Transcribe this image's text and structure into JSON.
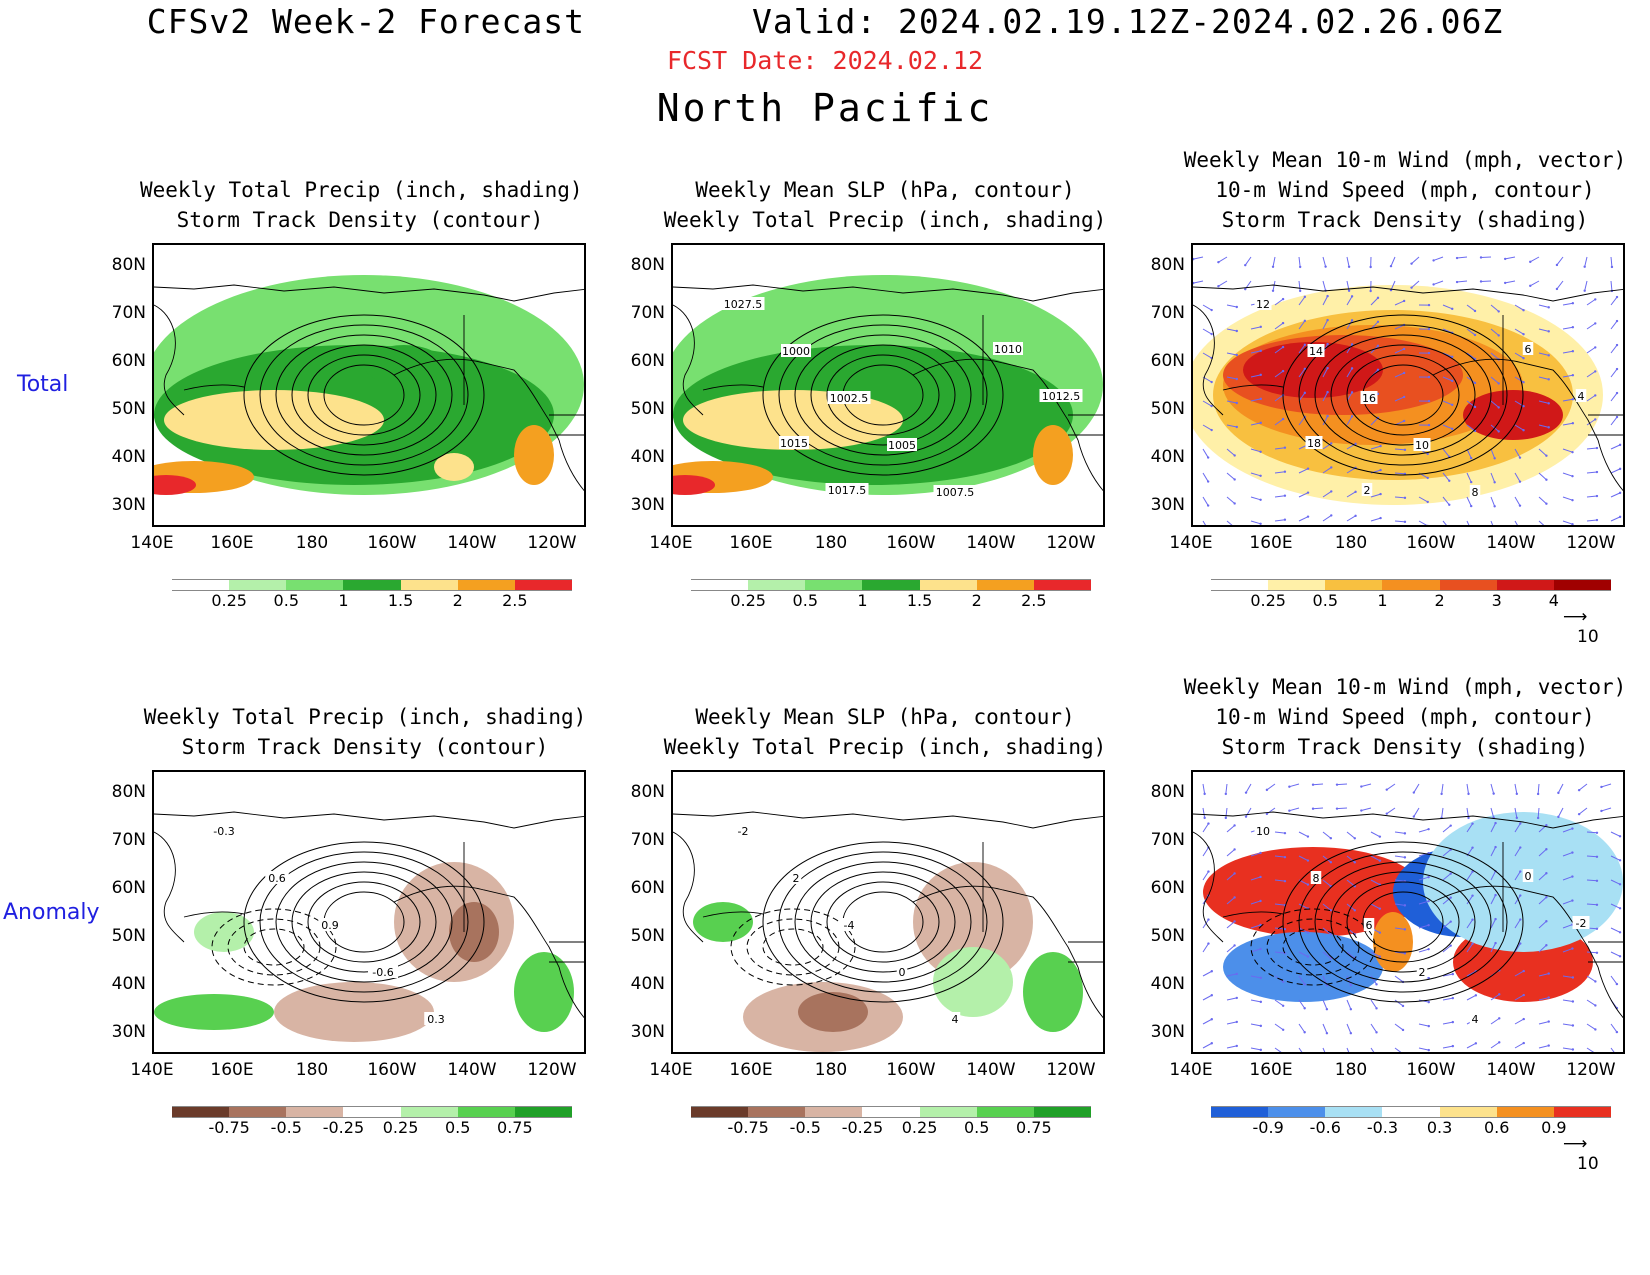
{
  "header": {
    "title_left": "CFSv2 Week-2 Forecast",
    "valid": "Valid: 2024.02.19.12Z-2024.02.26.06Z",
    "fcst_date": "FCST Date: 2024.02.12",
    "region": "North Pacific"
  },
  "row_labels": {
    "total": "Total",
    "anomaly": "Anomaly"
  },
  "axes": {
    "lat_labels": [
      "80N",
      "70N",
      "60N",
      "50N",
      "40N",
      "30N"
    ],
    "lon_labels": [
      "140E",
      "160E",
      "180",
      "160W",
      "140W",
      "120W"
    ]
  },
  "panels": [
    {
      "id": "t1",
      "title_lines": [
        "Weekly Total Precip (inch, shading)",
        "Storm Track Density (contour)"
      ],
      "colorbar": {
        "labels": [
          "0.25",
          "0.5",
          "1",
          "1.5",
          "2",
          "2.5"
        ],
        "colors": [
          "#ffffff",
          "#b4f0aa",
          "#78e070",
          "#2aa830",
          "#fde28c",
          "#f4a020",
          "#e8282b"
        ]
      }
    },
    {
      "id": "t2",
      "title_lines": [
        "Weekly Mean SLP (hPa, contour)",
        "Weekly Total Precip (inch, shading)"
      ],
      "contour_labels": [
        "1027.5",
        "1000",
        "1002.5",
        "1005",
        "1007.5",
        "1010",
        "1012.5",
        "1015",
        "1017.5"
      ],
      "colorbar": {
        "labels": [
          "0.25",
          "0.5",
          "1",
          "1.5",
          "2",
          "2.5"
        ],
        "colors": [
          "#ffffff",
          "#b4f0aa",
          "#78e070",
          "#2aa830",
          "#fde28c",
          "#f4a020",
          "#e8282b"
        ]
      }
    },
    {
      "id": "t3",
      "title_lines": [
        "Weekly Mean 10-m Wind (mph, vector)",
        "10-m Wind Speed (mph, contour)",
        "Storm Track Density (shading)"
      ],
      "contour_labels": [
        "12",
        "14",
        "16",
        "10",
        "8",
        "6",
        "4",
        "18",
        "2"
      ],
      "colorbar": {
        "labels": [
          "0.25",
          "0.5",
          "1",
          "2",
          "3",
          "4"
        ],
        "colors": [
          "#ffffff",
          "#fff0a8",
          "#f8c040",
          "#f49020",
          "#e85020",
          "#d01818",
          "#a00000"
        ]
      },
      "vector_ref": "10"
    },
    {
      "id": "a1",
      "title_lines": [
        "Weekly Total Precip (inch, shading)",
        "Storm Track Density (contour)"
      ],
      "contour_labels": [
        "-0.3",
        "0.6",
        "0.9",
        "-0.6",
        "0.3"
      ],
      "colorbar": {
        "labels": [
          "-0.75",
          "-0.5",
          "-0.25",
          "0.25",
          "0.5",
          "0.75"
        ],
        "colors": [
          "#6a3b2a",
          "#a8735e",
          "#d8b4a4",
          "#ffffff",
          "#b4f0aa",
          "#58d050",
          "#20a028"
        ]
      }
    },
    {
      "id": "a2",
      "title_lines": [
        "Weekly Mean SLP (hPa, contour)",
        "Weekly Total Precip (inch, shading)"
      ],
      "contour_labels": [
        "-2",
        "2",
        "-4",
        "0",
        "4"
      ],
      "colorbar": {
        "labels": [
          "-0.75",
          "-0.5",
          "-0.25",
          "0.25",
          "0.5",
          "0.75"
        ],
        "colors": [
          "#6a3b2a",
          "#a8735e",
          "#d8b4a4",
          "#ffffff",
          "#b4f0aa",
          "#58d050",
          "#20a028"
        ]
      }
    },
    {
      "id": "a3",
      "title_lines": [
        "Weekly Mean 10-m Wind (mph, vector)",
        "10-m Wind Speed (mph, contour)",
        "Storm Track Density (shading)"
      ],
      "contour_labels": [
        "10",
        "8",
        "6",
        "2",
        "4",
        "0",
        "-2"
      ],
      "colorbar": {
        "labels": [
          "-0.9",
          "-0.6",
          "-0.3",
          "0.3",
          "0.6",
          "0.9"
        ],
        "colors": [
          "#1f5fd8",
          "#4c8fea",
          "#a8e0f4",
          "#ffffff",
          "#fde28c",
          "#f49020",
          "#e83020"
        ]
      },
      "vector_ref": "10"
    }
  ]
}
